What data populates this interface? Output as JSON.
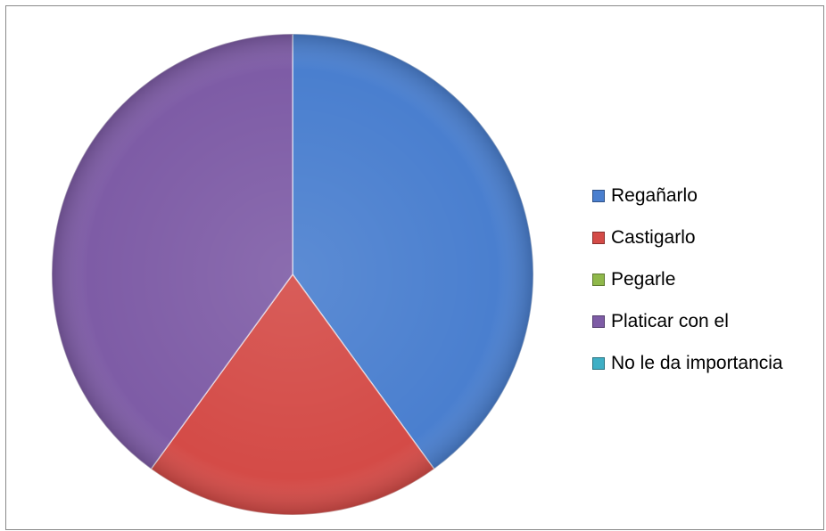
{
  "chart_data": {
    "type": "pie",
    "title": "",
    "categories": [
      "Regañarlo",
      "Castigarlo",
      "Pegarle",
      "Platicar con el",
      "No le da importancia"
    ],
    "values": [
      40,
      20,
      0,
      40,
      0
    ],
    "colors": [
      "#4a7fcf",
      "#d44b47",
      "#8fb84a",
      "#7e5ca6",
      "#3fafc5"
    ],
    "legend_position": "right"
  }
}
